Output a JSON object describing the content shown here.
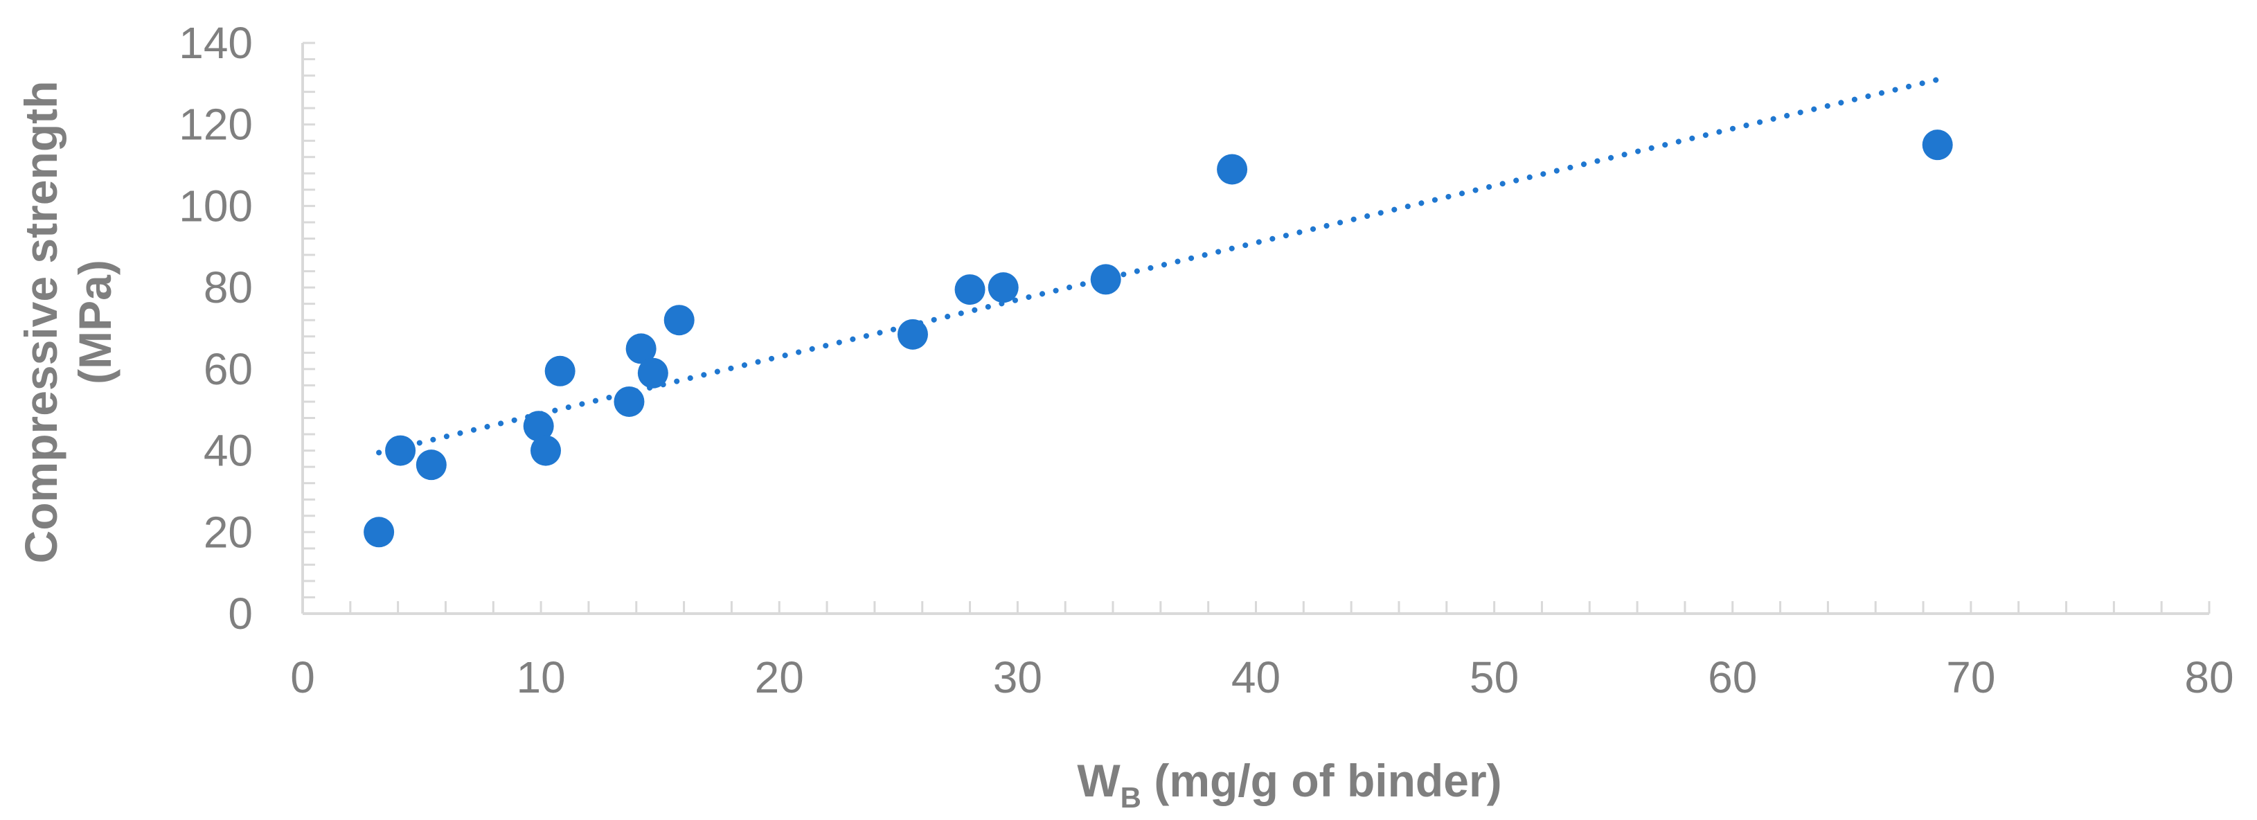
{
  "chart_data": {
    "type": "scatter",
    "xlabel": "W",
    "xlabel_subscript": "B",
    "xlabel_suffix": " (mg/g of binder)",
    "ylabel_line1": "Compressive strength",
    "ylabel_line2": "(MPa)",
    "xlim": [
      0,
      80
    ],
    "ylim": [
      0,
      140
    ],
    "xticks": [
      0,
      10,
      20,
      30,
      40,
      50,
      60,
      70,
      80
    ],
    "yticks": [
      0,
      20,
      40,
      60,
      80,
      100,
      120,
      140
    ],
    "grid": false,
    "legend": "none",
    "series": [
      {
        "x": [
          3.2,
          4.1,
          5.4,
          9.9,
          10.2,
          10.8,
          13.7,
          14.2,
          14.7,
          15.8,
          25.6,
          28.0,
          29.4,
          33.7,
          39.0,
          68.6
        ],
        "y": [
          20,
          40,
          36.5,
          46,
          40,
          59.5,
          52,
          65,
          59,
          72,
          68.5,
          79.5,
          80,
          82,
          109,
          115
        ],
        "color": "#1f77d0"
      }
    ],
    "trendline": {
      "type": "linear",
      "style": "dotted",
      "color": "#1f77d0",
      "x_start": 3.2,
      "x_end": 68.6,
      "y_start": 39.5,
      "y_end": 131
    }
  }
}
